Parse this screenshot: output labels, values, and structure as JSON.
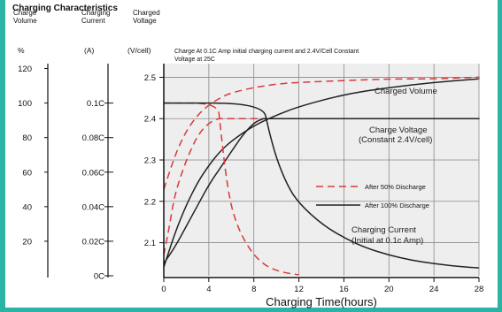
{
  "chart_data": {
    "type": "line",
    "title": "Charging Characteristics",
    "column_headers": [
      "Charge Volume",
      "Charging Current",
      "Charged Voltage"
    ],
    "units": {
      "charge_volume": "%",
      "charging_current": "(A)",
      "voltage": "(V/cell)"
    },
    "annotation": [
      "Charge At 0.1C Amp initial charging current and 2.4V/Cell Constant",
      "Voltage at 25C"
    ],
    "xlabel": "Charging Time(hours)",
    "x_ticks": [
      "0",
      "4",
      "8",
      "12",
      "16",
      "20",
      "24",
      "28"
    ],
    "xlim": [
      0,
      28
    ],
    "y_axes": {
      "charge_volume": {
        "ticks": [
          "120",
          "100",
          "80",
          "60",
          "40",
          "20"
        ],
        "range": [
          0,
          130
        ]
      },
      "charging_current": {
        "ticks": [
          "0.1C",
          "0.08C",
          "0.06C",
          "0.04C",
          "0.02C",
          "0C"
        ],
        "range": [
          0,
          0.13
        ]
      },
      "voltage": {
        "ticks": [
          "2.5",
          "2.4",
          "2.3",
          "2.2",
          "2.1"
        ],
        "range": [
          2.02,
          2.58
        ]
      }
    },
    "curve_labels": {
      "charged_volume": "Charged Volume",
      "charge_voltage": [
        "Charge Voltage",
        "(Constant 2.4V/cell)"
      ],
      "charging_current": [
        "Charging Current",
        "(Initial at 0.1c Amp)"
      ]
    },
    "legend": [
      {
        "name": "After 50% Discharge",
        "style": "dashed",
        "color": "#d93a3a"
      },
      {
        "name": "After 100% Discharge",
        "style": "solid",
        "color": "#222222"
      }
    ],
    "series": [
      {
        "name": "After 50% Discharge",
        "quantity": "charge_volume",
        "x": [
          0,
          1,
          2,
          3,
          4,
          5,
          6,
          8,
          10,
          12,
          16,
          20,
          24,
          28
        ],
        "values": [
          50,
          70,
          84,
          93,
          99,
          103,
          106,
          109,
          111,
          112,
          113,
          114,
          114,
          115
        ]
      },
      {
        "name": "After 100% Discharge",
        "quantity": "charge_volume",
        "x": [
          0,
          1,
          2,
          3,
          4,
          5,
          6,
          8,
          10,
          12,
          16,
          20,
          24,
          28
        ],
        "values": [
          5,
          25,
          41,
          54,
          64,
          72,
          78,
          87,
          93,
          98,
          105,
          109,
          112,
          114
        ]
      },
      {
        "name": "After 50% Discharge",
        "quantity": "charge_voltage",
        "x": [
          0,
          0.5,
          1,
          2,
          3,
          4,
          4.8,
          5.2,
          6,
          8,
          12,
          16,
          20,
          24,
          28
        ],
        "values": [
          2.07,
          2.14,
          2.22,
          2.3,
          2.36,
          2.39,
          2.4,
          2.4,
          2.4,
          2.4,
          2.4,
          2.4,
          2.4,
          2.4,
          2.4
        ]
      },
      {
        "name": "After 100% Discharge",
        "quantity": "charge_voltage",
        "x": [
          0,
          1,
          2,
          3,
          4,
          5,
          6,
          7,
          8,
          8.8,
          9,
          12,
          16,
          20,
          24,
          28
        ],
        "values": [
          2.05,
          2.09,
          2.14,
          2.19,
          2.24,
          2.28,
          2.32,
          2.36,
          2.39,
          2.4,
          2.4,
          2.4,
          2.4,
          2.4,
          2.4,
          2.4
        ]
      },
      {
        "name": "After 50% Discharge",
        "quantity": "charging_current",
        "x": [
          0,
          4.8,
          5.0,
          5.3,
          5.7,
          6.2,
          7,
          8,
          9,
          10,
          11,
          12
        ],
        "values": [
          0.1,
          0.1,
          0.088,
          0.07,
          0.05,
          0.035,
          0.022,
          0.012,
          0.006,
          0.003,
          0.0015,
          0.0005
        ]
      },
      {
        "name": "After 100% Discharge",
        "quantity": "charging_current",
        "x": [
          0,
          8.8,
          9.3,
          10,
          11,
          12,
          14,
          16,
          18,
          20,
          22,
          24,
          26,
          28
        ],
        "values": [
          0.1,
          0.1,
          0.085,
          0.068,
          0.052,
          0.042,
          0.03,
          0.022,
          0.016,
          0.012,
          0.009,
          0.007,
          0.0055,
          0.0045
        ]
      }
    ]
  }
}
